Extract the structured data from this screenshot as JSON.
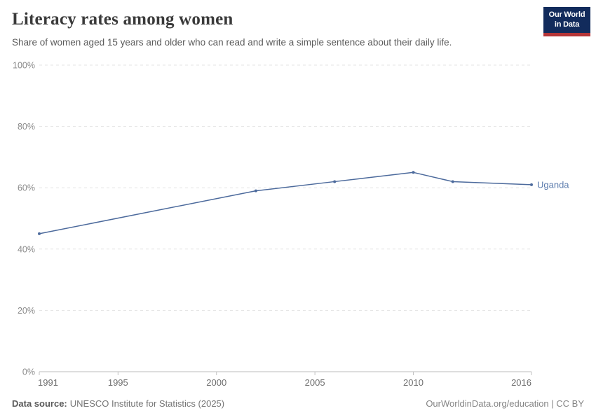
{
  "logo": {
    "line1": "Our World",
    "line2": "in Data",
    "bg_color": "#122B5C",
    "stripe_color": "#B53538"
  },
  "chart_data": {
    "type": "line",
    "title": "Literacy rates among women",
    "subtitle": "Share of women aged 15 years and older who can read and write a simple sentence about their daily life.",
    "series": [
      {
        "name": "Uganda",
        "color": "#4C6A9C",
        "label_color": "#5B7BAD",
        "x": [
          1991,
          2002,
          2006,
          2010,
          2012,
          2016
        ],
        "values": [
          45,
          59,
          62,
          65,
          62,
          61
        ]
      }
    ],
    "xlim": [
      1991,
      2016
    ],
    "ylim": [
      0,
      100
    ],
    "xticks": [
      1991,
      1995,
      2000,
      2005,
      2010,
      2016
    ],
    "yticks": [
      0,
      20,
      40,
      60,
      80,
      100
    ],
    "ytick_suffix": "%",
    "grid": "horizontal-dashed",
    "legend_position": "end-of-line"
  },
  "footer": {
    "source_label": "Data source:",
    "source_text": "UNESCO Institute for Statistics (2025)",
    "credit": "OurWorldinData.org/education | CC BY"
  }
}
